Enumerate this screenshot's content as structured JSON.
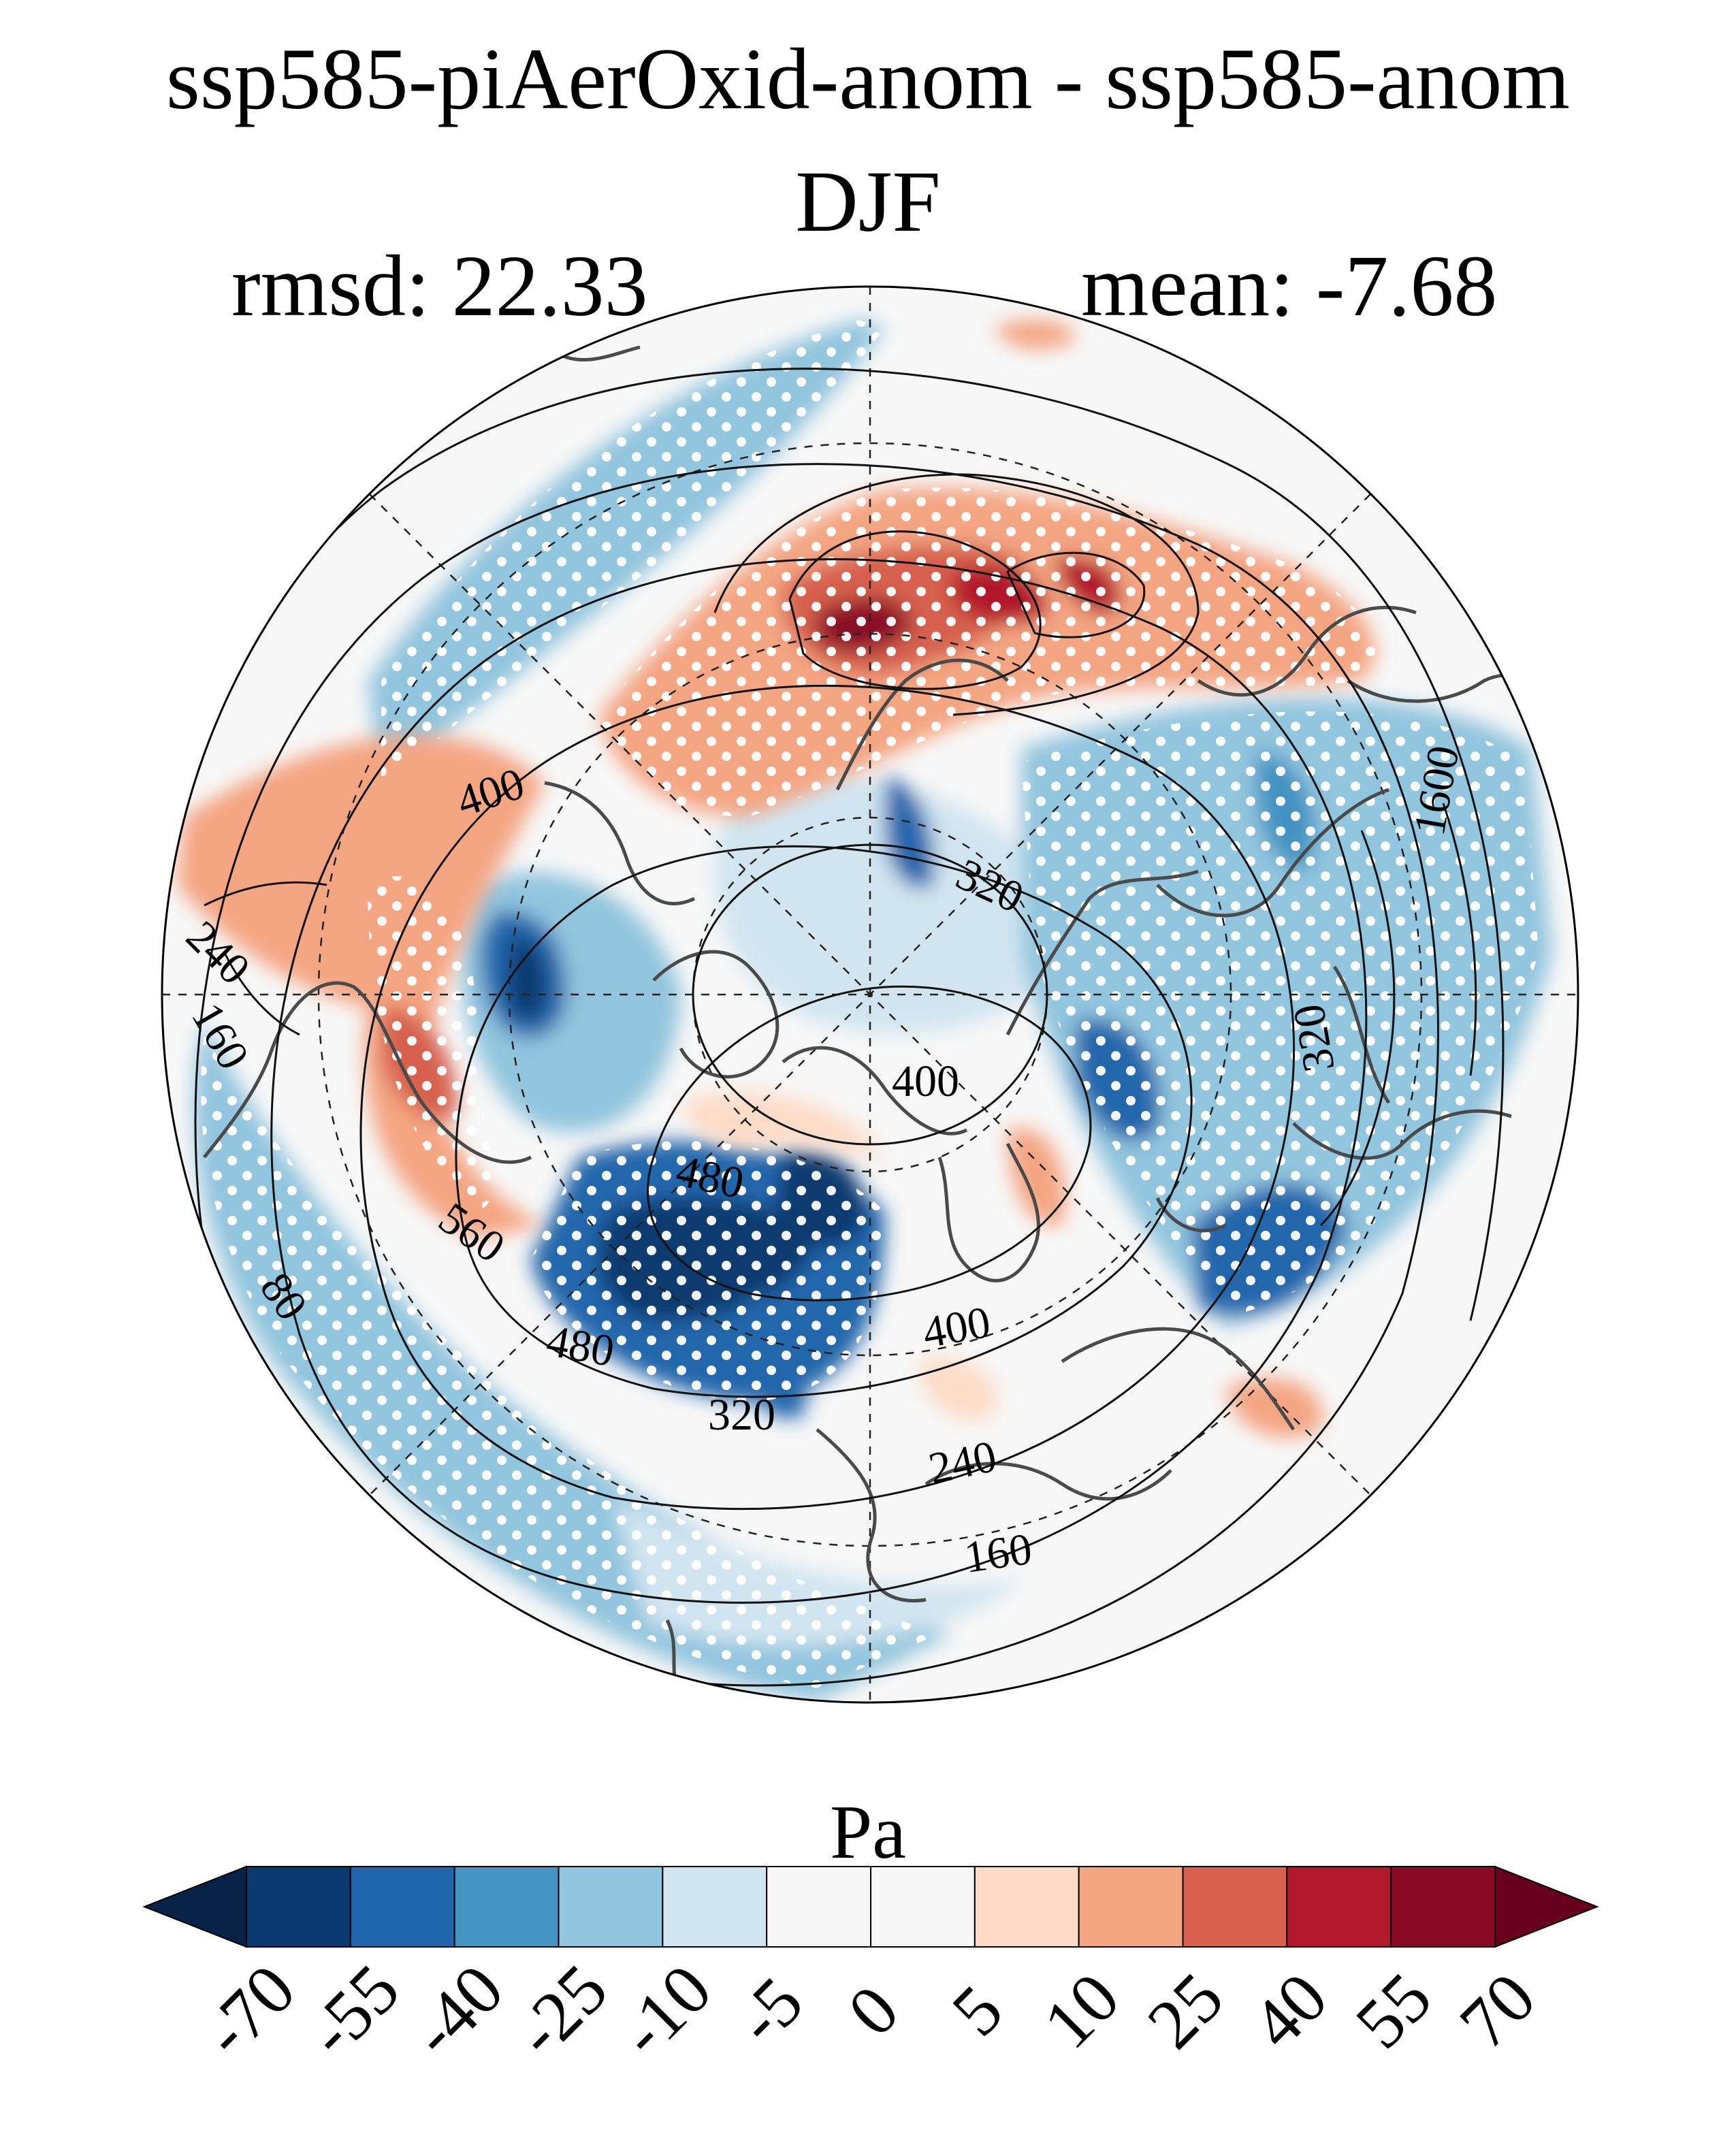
{
  "title": "ssp585-piAerOxid-anom - ssp585-anom",
  "season": "DJF",
  "rmsd_label": "rmsd: 22.33",
  "mean_label": "mean: -7.68",
  "colorbar": {
    "unit": "Pa",
    "ticks": [
      "-70",
      "-55",
      "-40",
      "-25",
      "-10",
      "-5",
      "0",
      "5",
      "10",
      "25",
      "40",
      "55",
      "70"
    ],
    "colors": [
      "#0a3a70",
      "#2166ac",
      "#4393c3",
      "#92c5de",
      "#d1e5f0",
      "#f7f7f7",
      "#f7f7f7",
      "#fddbc7",
      "#f4a582",
      "#d6604d",
      "#b2182b",
      "#8b0a26"
    ],
    "extend_low_color": "#062347",
    "extend_high_color": "#67001f"
  },
  "contour_labels": [
    "400",
    "320",
    "240",
    "160",
    "400",
    "480",
    "560",
    "480",
    "400",
    "320",
    "240",
    "160",
    "80",
    "1600",
    "320"
  ],
  "map": {
    "projection": "north polar stereographic",
    "ocean_color": "#f7f7f7",
    "coast_color": "#4a4a4a",
    "contour_color": "#111111",
    "stipple_color": "#ffffff"
  }
}
